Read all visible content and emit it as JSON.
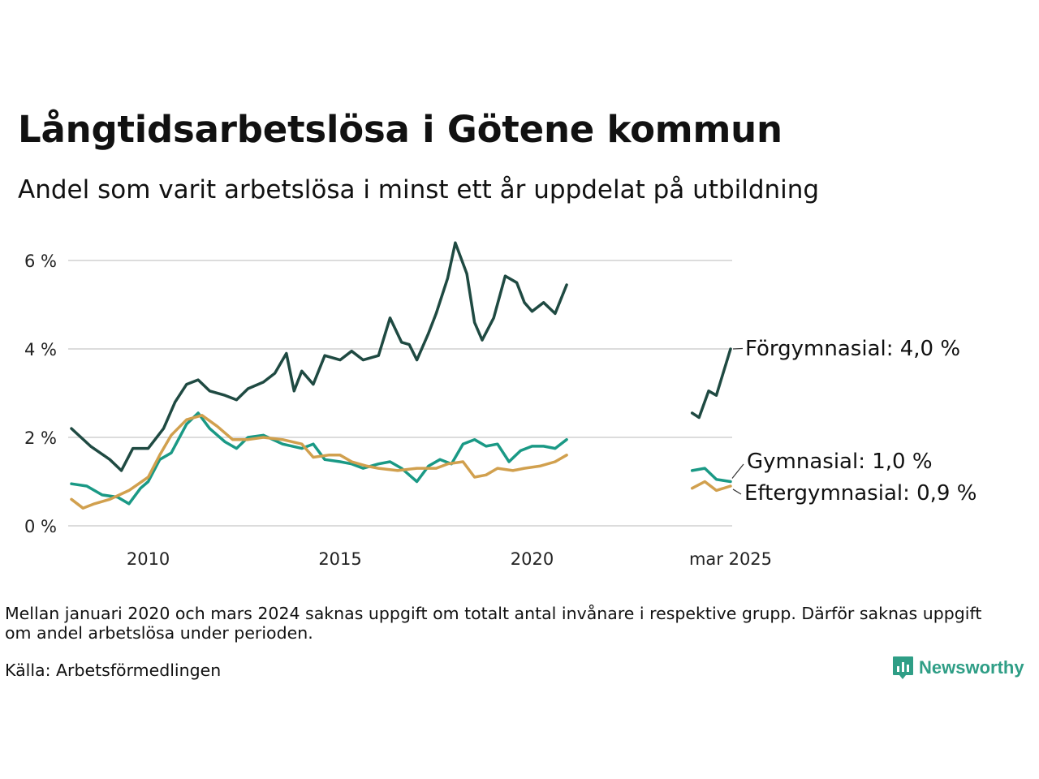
{
  "title": "Långtidsarbetslösa i Götene kommun",
  "subtitle": "Andel som varit arbetslösa i minst ett år uppdelat på utbildning",
  "note": "Mellan januari 2020 och mars 2024 saknas uppgift om totalt antal invånare i respektive grupp. Därför saknas uppgift om andel arbetslösa under perioden.",
  "source": "Källa: Arbetsförmedlingen",
  "brand": {
    "name": "Newsworthy",
    "icon": "newsworthy-logo-icon"
  },
  "colors": {
    "forgymnasial": "#1f4a42",
    "gymnasial": "#1a9985",
    "eftergymnasial": "#d1a04e",
    "grid": "#dcdcdc"
  },
  "chart_data": {
    "type": "line",
    "ylim": [
      0,
      6.5
    ],
    "yticks": [
      0,
      2,
      4,
      6
    ],
    "ytick_labels": [
      "0 %",
      "2 %",
      "4 %",
      "6 %"
    ],
    "xticks": [
      2010,
      2015,
      2020,
      2025.17
    ],
    "xtick_labels": [
      "2010",
      "2015",
      "2020",
      "mar 2025"
    ],
    "grid": true,
    "series": [
      {
        "name": "Förgymnasial",
        "color_key": "forgymnasial",
        "end_label": "Förgymnasial: 4,0 %",
        "segments": [
          [
            [
              2008.0,
              2.2
            ],
            [
              2008.5,
              1.8
            ],
            [
              2009.0,
              1.5
            ],
            [
              2009.3,
              1.25
            ],
            [
              2009.6,
              1.75
            ],
            [
              2010.0,
              1.75
            ],
            [
              2010.4,
              2.2
            ],
            [
              2010.7,
              2.8
            ],
            [
              2011.0,
              3.2
            ],
            [
              2011.3,
              3.3
            ],
            [
              2011.6,
              3.05
            ],
            [
              2012.0,
              2.95
            ],
            [
              2012.3,
              2.85
            ],
            [
              2012.6,
              3.1
            ],
            [
              2013.0,
              3.25
            ],
            [
              2013.3,
              3.45
            ],
            [
              2013.6,
              3.9
            ],
            [
              2013.8,
              3.05
            ],
            [
              2014.0,
              3.5
            ],
            [
              2014.3,
              3.2
            ],
            [
              2014.6,
              3.85
            ],
            [
              2015.0,
              3.75
            ],
            [
              2015.3,
              3.95
            ],
            [
              2015.6,
              3.75
            ],
            [
              2016.0,
              3.85
            ],
            [
              2016.3,
              4.7
            ],
            [
              2016.6,
              4.15
            ],
            [
              2016.8,
              4.1
            ],
            [
              2017.0,
              3.75
            ],
            [
              2017.3,
              4.35
            ],
            [
              2017.5,
              4.8
            ],
            [
              2017.8,
              5.6
            ],
            [
              2018.0,
              6.4
            ],
            [
              2018.3,
              5.7
            ],
            [
              2018.5,
              4.6
            ],
            [
              2018.7,
              4.2
            ],
            [
              2019.0,
              4.7
            ],
            [
              2019.3,
              5.65
            ],
            [
              2019.6,
              5.5
            ],
            [
              2019.8,
              5.05
            ],
            [
              2020.0,
              4.85
            ],
            [
              2020.3,
              5.05
            ],
            [
              2020.6,
              4.8
            ],
            [
              2020.9,
              5.45
            ]
          ],
          [
            [
              2024.17,
              2.55
            ],
            [
              2024.35,
              2.45
            ],
            [
              2024.6,
              3.05
            ],
            [
              2024.8,
              2.95
            ],
            [
              2025.17,
              4.0
            ]
          ]
        ]
      },
      {
        "name": "Gymnasial",
        "color_key": "gymnasial",
        "end_label": "Gymnasial: 1,0 %",
        "segments": [
          [
            [
              2008.0,
              0.95
            ],
            [
              2008.4,
              0.9
            ],
            [
              2008.8,
              0.7
            ],
            [
              2009.2,
              0.65
            ],
            [
              2009.5,
              0.5
            ],
            [
              2009.8,
              0.85
            ],
            [
              2010.0,
              1.0
            ],
            [
              2010.3,
              1.5
            ],
            [
              2010.6,
              1.65
            ],
            [
              2011.0,
              2.3
            ],
            [
              2011.3,
              2.55
            ],
            [
              2011.6,
              2.2
            ],
            [
              2012.0,
              1.9
            ],
            [
              2012.3,
              1.75
            ],
            [
              2012.6,
              2.0
            ],
            [
              2013.0,
              2.05
            ],
            [
              2013.5,
              1.85
            ],
            [
              2014.0,
              1.75
            ],
            [
              2014.3,
              1.85
            ],
            [
              2014.6,
              1.5
            ],
            [
              2015.0,
              1.45
            ],
            [
              2015.3,
              1.4
            ],
            [
              2015.6,
              1.3
            ],
            [
              2016.0,
              1.4
            ],
            [
              2016.3,
              1.45
            ],
            [
              2016.6,
              1.3
            ],
            [
              2017.0,
              1.0
            ],
            [
              2017.3,
              1.35
            ],
            [
              2017.6,
              1.5
            ],
            [
              2017.9,
              1.4
            ],
            [
              2018.2,
              1.85
            ],
            [
              2018.5,
              1.95
            ],
            [
              2018.8,
              1.8
            ],
            [
              2019.1,
              1.85
            ],
            [
              2019.4,
              1.45
            ],
            [
              2019.7,
              1.7
            ],
            [
              2020.0,
              1.8
            ],
            [
              2020.3,
              1.8
            ],
            [
              2020.6,
              1.75
            ],
            [
              2020.9,
              1.95
            ]
          ],
          [
            [
              2024.17,
              1.25
            ],
            [
              2024.5,
              1.3
            ],
            [
              2024.8,
              1.05
            ],
            [
              2025.17,
              1.0
            ]
          ]
        ]
      },
      {
        "name": "Eftergymnasial",
        "color_key": "eftergymnasial",
        "end_label": "Eftergymnasial: 0,9 %",
        "segments": [
          [
            [
              2008.0,
              0.6
            ],
            [
              2008.3,
              0.4
            ],
            [
              2008.6,
              0.5
            ],
            [
              2009.0,
              0.6
            ],
            [
              2009.5,
              0.8
            ],
            [
              2010.0,
              1.1
            ],
            [
              2010.3,
              1.6
            ],
            [
              2010.6,
              2.05
            ],
            [
              2011.0,
              2.4
            ],
            [
              2011.4,
              2.5
            ],
            [
              2011.8,
              2.25
            ],
            [
              2012.2,
              1.95
            ],
            [
              2012.6,
              1.95
            ],
            [
              2013.0,
              2.0
            ],
            [
              2013.5,
              1.95
            ],
            [
              2014.0,
              1.85
            ],
            [
              2014.3,
              1.55
            ],
            [
              2014.7,
              1.6
            ],
            [
              2015.0,
              1.6
            ],
            [
              2015.3,
              1.45
            ],
            [
              2015.7,
              1.35
            ],
            [
              2016.0,
              1.3
            ],
            [
              2016.5,
              1.25
            ],
            [
              2017.0,
              1.3
            ],
            [
              2017.5,
              1.3
            ],
            [
              2017.8,
              1.4
            ],
            [
              2018.2,
              1.45
            ],
            [
              2018.5,
              1.1
            ],
            [
              2018.8,
              1.15
            ],
            [
              2019.1,
              1.3
            ],
            [
              2019.5,
              1.25
            ],
            [
              2019.8,
              1.3
            ],
            [
              2020.2,
              1.35
            ],
            [
              2020.6,
              1.45
            ],
            [
              2020.9,
              1.6
            ]
          ],
          [
            [
              2024.17,
              0.85
            ],
            [
              2024.5,
              1.0
            ],
            [
              2024.8,
              0.8
            ],
            [
              2025.17,
              0.9
            ]
          ]
        ]
      }
    ]
  }
}
